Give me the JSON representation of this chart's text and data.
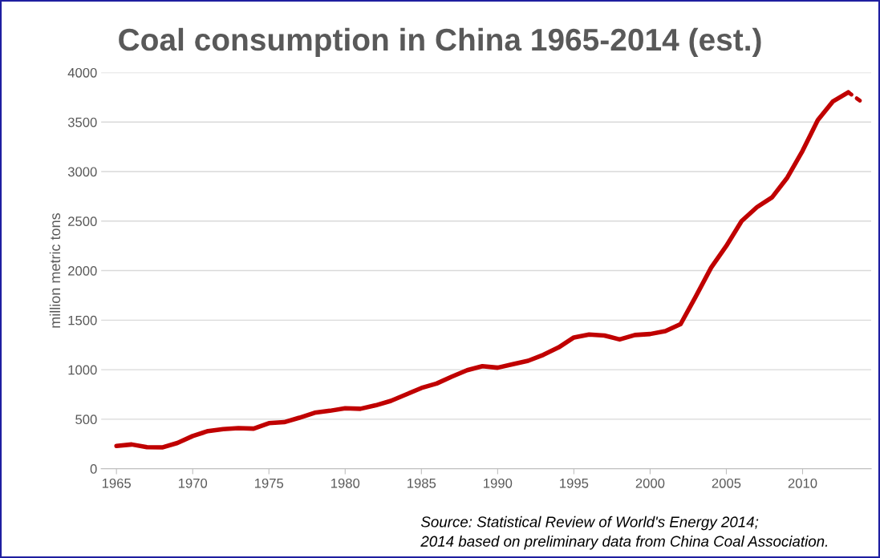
{
  "chart_data": {
    "type": "line",
    "title": "Coal consumption in China 1965-2014 (est.)",
    "ylabel": "million metric tons",
    "series": [
      {
        "color": "#c00000",
        "line_style": "solid",
        "x": [
          1965,
          1966,
          1967,
          1968,
          1969,
          1970,
          1971,
          1972,
          1973,
          1974,
          1975,
          1976,
          1977,
          1978,
          1979,
          1980,
          1981,
          1982,
          1983,
          1984,
          1985,
          1986,
          1987,
          1988,
          1989,
          1990,
          1991,
          1992,
          1993,
          1994,
          1995,
          1996,
          1997,
          1998,
          1999,
          2000,
          2001,
          2002,
          2003,
          2004,
          2005,
          2006,
          2007,
          2008,
          2009,
          2010,
          2011,
          2012,
          2013
        ],
        "values": [
          230,
          245,
          218,
          215,
          260,
          330,
          380,
          400,
          410,
          405,
          460,
          470,
          515,
          565,
          585,
          610,
          605,
          640,
          685,
          750,
          815,
          860,
          930,
          995,
          1035,
          1020,
          1055,
          1090,
          1150,
          1225,
          1325,
          1355,
          1345,
          1305,
          1350,
          1360,
          1390,
          1460,
          1740,
          2030,
          2250,
          2500,
          2640,
          2740,
          2940,
          3210,
          3520,
          3710,
          3800
        ]
      },
      {
        "color": "#c00000",
        "line_style": "dotted",
        "x": [
          2013,
          2014
        ],
        "values": [
          3800,
          3690
        ]
      }
    ],
    "xlim": [
      1964,
      2014.5
    ],
    "xticks": [
      1965,
      1970,
      1975,
      1980,
      1985,
      1990,
      1995,
      2000,
      2005,
      2010
    ],
    "ylim": [
      0,
      4000
    ],
    "yticks": [
      0,
      500,
      1000,
      1500,
      2000,
      2500,
      3000,
      3500,
      4000
    ],
    "grid": "y",
    "legend": false,
    "marker": "none",
    "annotations": [
      "Source: Statistical Review of World's Energy 2014;\n2014 based on preliminary data from China Coal Association."
    ]
  }
}
